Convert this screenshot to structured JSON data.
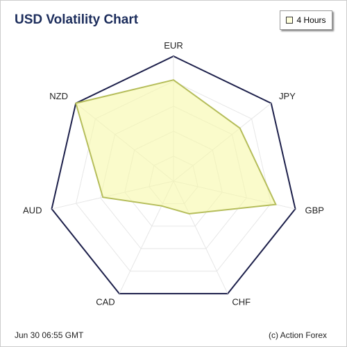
{
  "chart_data": {
    "type": "radar",
    "title": "USD Volatility Chart",
    "categories": [
      "EUR",
      "JPY",
      "GBP",
      "CHF",
      "CAD",
      "AUD",
      "NZD"
    ],
    "series": [
      {
        "name": "4 Hours",
        "color": "#b5bd5a",
        "values": [
          81,
          68,
          84,
          29,
          22,
          58,
          100
        ]
      }
    ],
    "rlim": [
      0,
      100
    ],
    "rticks": [
      20,
      40,
      60,
      80,
      100
    ],
    "grid": true
  },
  "footer": {
    "timestamp": "Jun 30 06:55 GMT",
    "credit": "(c) Action Forex"
  }
}
